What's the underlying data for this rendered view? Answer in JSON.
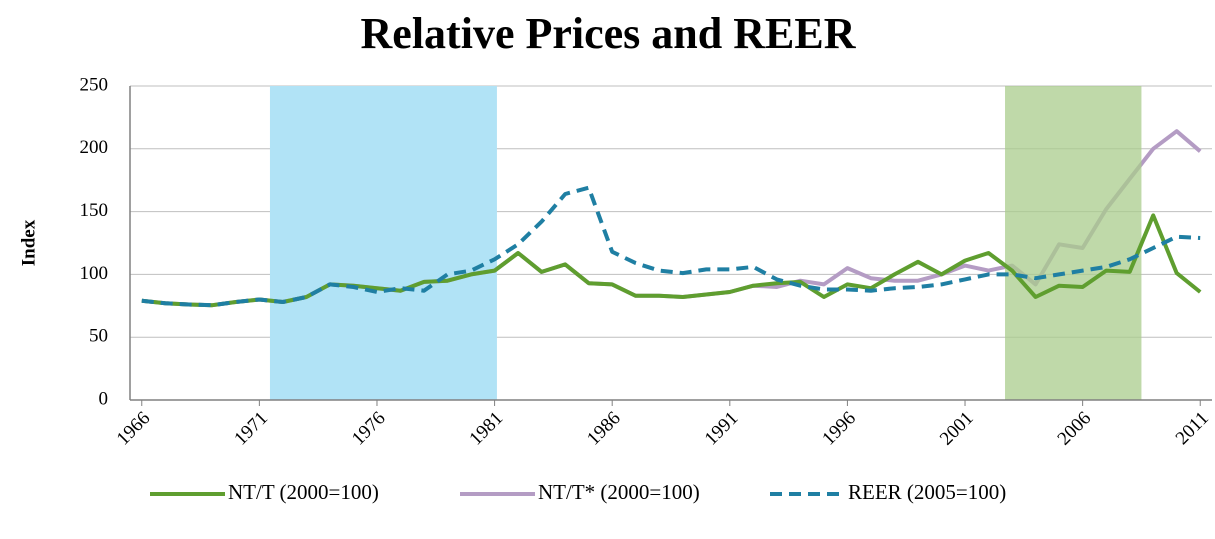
{
  "chart_data": {
    "type": "line",
    "title": "Relative Prices and REER",
    "y_label": "Index",
    "x": [
      1966,
      1967,
      1968,
      1969,
      1970,
      1971,
      1972,
      1973,
      1974,
      1975,
      1976,
      1977,
      1978,
      1979,
      1980,
      1981,
      1982,
      1983,
      1984,
      1985,
      1986,
      1987,
      1988,
      1989,
      1990,
      1991,
      1992,
      1993,
      1994,
      1995,
      1996,
      1997,
      1998,
      1999,
      2000,
      2001,
      2002,
      2003,
      2004,
      2005,
      2006,
      2007,
      2008,
      2009,
      2010,
      2011
    ],
    "xlim": [
      1965.5,
      2011.5
    ],
    "xticks": [
      1966,
      1971,
      1976,
      1981,
      1986,
      1991,
      1996,
      2001,
      2006,
      2011
    ],
    "ylim": [
      0,
      250
    ],
    "yticks": [
      0,
      50,
      100,
      150,
      200,
      250
    ],
    "grid": true,
    "shaded_periods": [
      {
        "from": 1971.45,
        "to": 1981.1,
        "color": "#b1e3f6"
      },
      {
        "from": 2002.7,
        "to": 2008.5,
        "color": "#a9cc8c"
      }
    ],
    "series": [
      {
        "name": "NT/T (2000=100)",
        "color": "#5f9e2f",
        "dash": false,
        "values": [
          79,
          77,
          76,
          75.5,
          78,
          80,
          78,
          82,
          92,
          91,
          89,
          87,
          94,
          95,
          100,
          103,
          117,
          102,
          108,
          93,
          92,
          83,
          83,
          82,
          84,
          86,
          91,
          93,
          94,
          82,
          92,
          89,
          100,
          110,
          100,
          111,
          117,
          103,
          82,
          91,
          90,
          103,
          102,
          147,
          101,
          86
        ]
      },
      {
        "name": "NT/T* (2000=100)",
        "color": "#b49cc4",
        "dash": false,
        "values": [
          79,
          77,
          76,
          75.5,
          78,
          80,
          78,
          82,
          92,
          91,
          89,
          87,
          94,
          95,
          100,
          103,
          117,
          102,
          108,
          93,
          92,
          83,
          83,
          82,
          84,
          86,
          91,
          90,
          95,
          92,
          105,
          97,
          95,
          95,
          100,
          107,
          103,
          107,
          92,
          124,
          121,
          152,
          176,
          200,
          214,
          198
        ]
      },
      {
        "name": "REER (2005=100)",
        "color": "#1f7fa3",
        "dash": true,
        "values": [
          79,
          77,
          76,
          75.5,
          78,
          80,
          78,
          82,
          92,
          90,
          86,
          89,
          87,
          100,
          103,
          112,
          124,
          142,
          164,
          169,
          118,
          109,
          103,
          101,
          104,
          104,
          106,
          96,
          91,
          88,
          88,
          87,
          89,
          90,
          92,
          96,
          100,
          100,
          97,
          100,
          103,
          106,
          112,
          121,
          130,
          129
        ]
      }
    ]
  }
}
